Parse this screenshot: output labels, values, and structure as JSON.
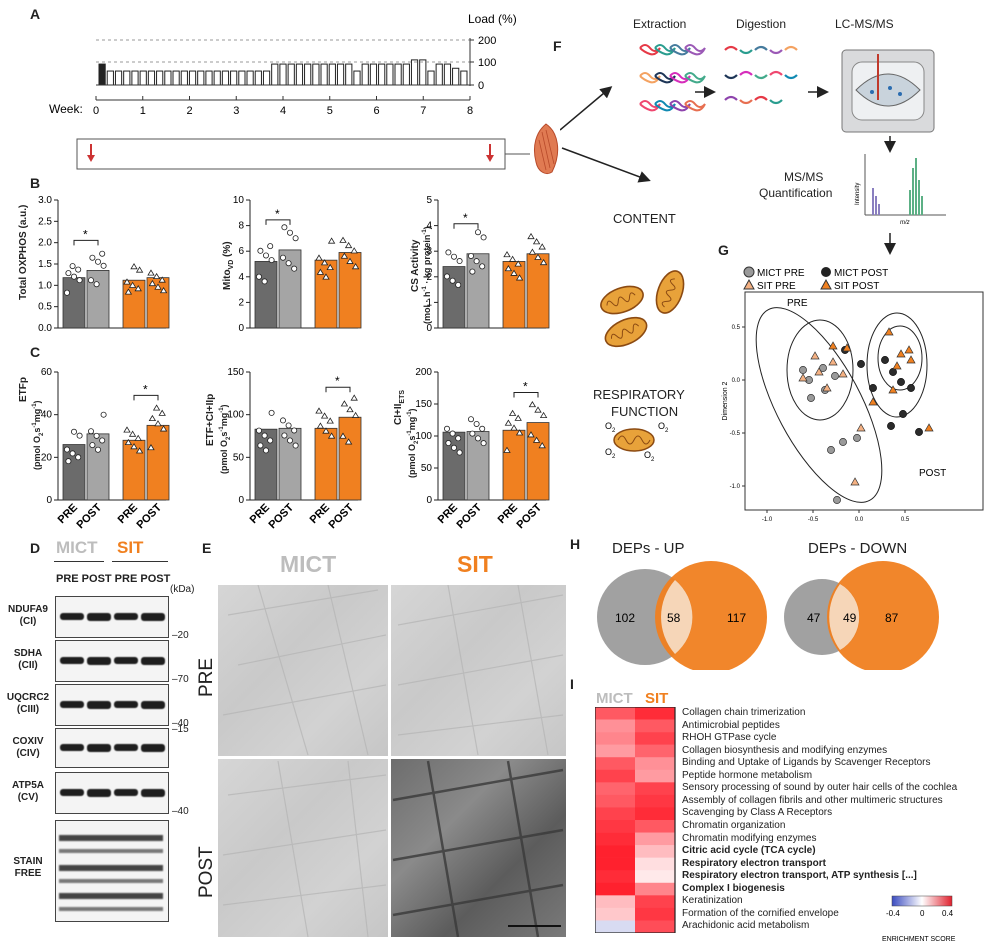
{
  "panels": {
    "A": "A",
    "B": "B",
    "C": "C",
    "D": "D",
    "E": "E",
    "F": "F",
    "G": "G",
    "H": "H",
    "I": "I"
  },
  "panel_a": {
    "load_label": "Load (%)",
    "load_ticks": [
      "200",
      "100",
      "0"
    ],
    "week_label": "Week:",
    "week_ticks": [
      "0",
      "1",
      "2",
      "3",
      "4",
      "5",
      "6",
      "7",
      "8"
    ]
  },
  "panel_b": {
    "ylabels": [
      "Total OXPHOS (a.u.)",
      "Mito",
      "VD",
      " (%)",
      "CS Activity",
      "(mol · h",
      "-1",
      " · kg protein",
      "-1",
      ")"
    ],
    "yticks_1": [
      "0.0",
      "0.5",
      "1.0",
      "1.5",
      "2.0",
      "2.5",
      "3.0"
    ],
    "yticks_2": [
      "0",
      "2",
      "4",
      "6",
      "8",
      "10"
    ],
    "yticks_3": [
      "0",
      "1",
      "2",
      "3",
      "4",
      "5"
    ],
    "star": "*"
  },
  "panel_c": {
    "ylabel_1": "ETFp",
    "ylabel_2": "ETF+CI+IIp",
    "ylabel_3a": "CI+II",
    "ylabel_3b": "ETS",
    "unit": "(pmol O",
    "unit_sub": "2",
    "unit_rest": "s",
    "unit_s": "-1",
    "unit_mg": "mg",
    "unit_close": ")",
    "yticks_1": [
      "0",
      "20",
      "40",
      "60"
    ],
    "yticks_2": [
      "0",
      "50",
      "100",
      "150"
    ],
    "yticks_3": [
      "0",
      "50",
      "100",
      "150",
      "200"
    ],
    "xticks": [
      "PRE",
      "POST",
      "PRE",
      "POST"
    ],
    "star": "*"
  },
  "panel_d": {
    "mict": "MICT",
    "sit": "SIT",
    "cols": "PRE POST PRE POST",
    "kda": "(kDa)",
    "rows": [
      {
        "name": "NDUFA9",
        "sub": "(CI)",
        "kda": "20"
      },
      {
        "name": "SDHA",
        "sub": "(CII)",
        "kda": "70"
      },
      {
        "name": "UQCRC2",
        "sub": "(CIII)",
        "kda": "40"
      },
      {
        "name": "COXIV",
        "sub": "(CIV)",
        "kda": "15"
      },
      {
        "name": "ATP5A",
        "sub": "(CV)",
        "kda": "40"
      },
      {
        "name": "STAIN",
        "sub": "FREE",
        "kda": ""
      }
    ]
  },
  "panel_e": {
    "mict": "MICT",
    "sit": "SIT",
    "pre": "PRE",
    "post": "POST"
  },
  "panel_f": {
    "extraction": "Extraction",
    "digestion": "Digestion",
    "lcms": "LC-MS/MS",
    "msms": "MS/MS",
    "quant": "Quantification",
    "intensity": "Intensity",
    "mz": "m/z",
    "content": "CONTENT",
    "resp1": "RESPIRATORY",
    "resp2": "FUNCTION",
    "o2": "O",
    "o2sub": "2"
  },
  "panel_g": {
    "legend": [
      "MICT PRE",
      "MICT POST",
      "SIT PRE",
      "SIT POST"
    ],
    "pre": "PRE",
    "post": "POST",
    "xlabel": "Dimension 1",
    "ylabel": "Dimension 2",
    "xticks": [
      "-1.0",
      "-0.5",
      "0.0",
      "0.5"
    ],
    "yticks": [
      "0.5",
      "0.0",
      "-0.5",
      "-1.0"
    ]
  },
  "panel_h": {
    "up_title": "DEPs - UP",
    "down_title": "DEPs - DOWN",
    "up": [
      102,
      58,
      117
    ],
    "down": [
      47,
      49,
      87
    ]
  },
  "panel_i": {
    "mict": "MICT",
    "sit": "SIT",
    "scale_ticks": [
      "-0.4",
      "0",
      "0.4"
    ],
    "scale_label": "ENRICHMENT SCORE",
    "pathways": [
      {
        "label": "Collagen chain trimerization",
        "bold": false
      },
      {
        "label": "Antimicrobial peptides",
        "bold": false
      },
      {
        "label": "RHOH GTPase cycle",
        "bold": false
      },
      {
        "label": "Collagen biosynthesis and modifying enzymes",
        "bold": false
      },
      {
        "label": "Binding and Uptake of Ligands by Scavenger Receptors",
        "bold": false
      },
      {
        "label": "Peptide hormone metabolism",
        "bold": false
      },
      {
        "label": "Sensory processing of sound by outer hair cells of the cochlea",
        "bold": false
      },
      {
        "label": "Assembly of collagen fibrils and other multimeric structures",
        "bold": false
      },
      {
        "label": "Scavenging by Class A Receptors",
        "bold": false
      },
      {
        "label": "Chromatin organization",
        "bold": false
      },
      {
        "label": "Chromatin modifying enzymes",
        "bold": false
      },
      {
        "label": "Citric acid cycle (TCA cycle)",
        "bold": true
      },
      {
        "label": "Respiratory electron transport",
        "bold": true
      },
      {
        "label": "Respiratory electron transport, ATP synthesis [...]",
        "bold": true
      },
      {
        "label": "Complex I biogenesis",
        "bold": true
      },
      {
        "label": "Keratinization",
        "bold": false
      },
      {
        "label": "Formation of the cornified envelope",
        "bold": false
      },
      {
        "label": "Arachidonic acid metabolism",
        "bold": false
      }
    ],
    "scores": [
      [
        0.3,
        0.38
      ],
      [
        0.2,
        0.3
      ],
      [
        0.22,
        0.34
      ],
      [
        0.18,
        0.28
      ],
      [
        0.3,
        0.2
      ],
      [
        0.34,
        0.18
      ],
      [
        0.28,
        0.34
      ],
      [
        0.3,
        0.36
      ],
      [
        0.34,
        0.38
      ],
      [
        0.36,
        0.3
      ],
      [
        0.38,
        0.18
      ],
      [
        0.4,
        0.12
      ],
      [
        0.4,
        0.06
      ],
      [
        0.38,
        0.04
      ],
      [
        0.4,
        0.22
      ],
      [
        0.12,
        0.34
      ],
      [
        0.1,
        0.36
      ],
      [
        -0.08,
        0.32
      ]
    ]
  },
  "chart_data": [
    {
      "type": "bar",
      "panel": "B1",
      "ylabel": "Total OXPHOS (a.u.)",
      "categories": [
        "MICT PRE",
        "MICT POST",
        "SIT PRE",
        "SIT POST"
      ],
      "values": [
        1.18,
        1.35,
        1.12,
        1.18
      ],
      "ylim": [
        0,
        3.0
      ]
    },
    {
      "type": "bar",
      "panel": "B2",
      "ylabel": "MitoVD (%)",
      "categories": [
        "MICT PRE",
        "MICT POST",
        "SIT PRE",
        "SIT POST"
      ],
      "values": [
        5.2,
        6.1,
        5.3,
        5.9
      ],
      "ylim": [
        0,
        10
      ]
    },
    {
      "type": "bar",
      "panel": "B3",
      "ylabel": "CS Activity",
      "categories": [
        "MICT PRE",
        "MICT POST",
        "SIT PRE",
        "SIT POST"
      ],
      "values": [
        2.4,
        2.9,
        2.6,
        2.9
      ],
      "ylim": [
        0,
        5
      ]
    },
    {
      "type": "bar",
      "panel": "C1",
      "ylabel": "ETFp",
      "categories": [
        "MICT PRE",
        "MICT POST",
        "SIT PRE",
        "SIT POST"
      ],
      "values": [
        26,
        31,
        28,
        35
      ],
      "ylim": [
        0,
        60
      ]
    },
    {
      "type": "bar",
      "panel": "C2",
      "ylabel": "ETF+CI+IIp",
      "categories": [
        "MICT PRE",
        "MICT POST",
        "SIT PRE",
        "SIT POST"
      ],
      "values": [
        83,
        84,
        84,
        97
      ],
      "ylim": [
        0,
        150
      ]
    },
    {
      "type": "bar",
      "panel": "C3",
      "ylabel": "CI+IIETS",
      "categories": [
        "MICT PRE",
        "MICT POST",
        "SIT PRE",
        "SIT POST"
      ],
      "values": [
        106,
        107,
        109,
        121
      ],
      "ylim": [
        0,
        200
      ]
    },
    {
      "type": "bar",
      "panel": "A",
      "xlabel": "Week",
      "ylabel": "Load (%)",
      "ylim": [
        0,
        200
      ],
      "values": [
        150,
        100,
        100,
        100,
        100,
        100,
        100,
        100,
        100,
        100,
        100,
        100,
        100,
        100,
        100,
        100,
        100,
        100,
        100,
        100,
        100,
        150,
        150,
        150,
        150,
        150,
        150,
        150,
        150,
        150,
        150,
        100,
        150,
        150,
        150,
        150,
        150,
        150,
        180,
        180,
        100,
        150,
        150,
        120,
        100
      ]
    }
  ]
}
